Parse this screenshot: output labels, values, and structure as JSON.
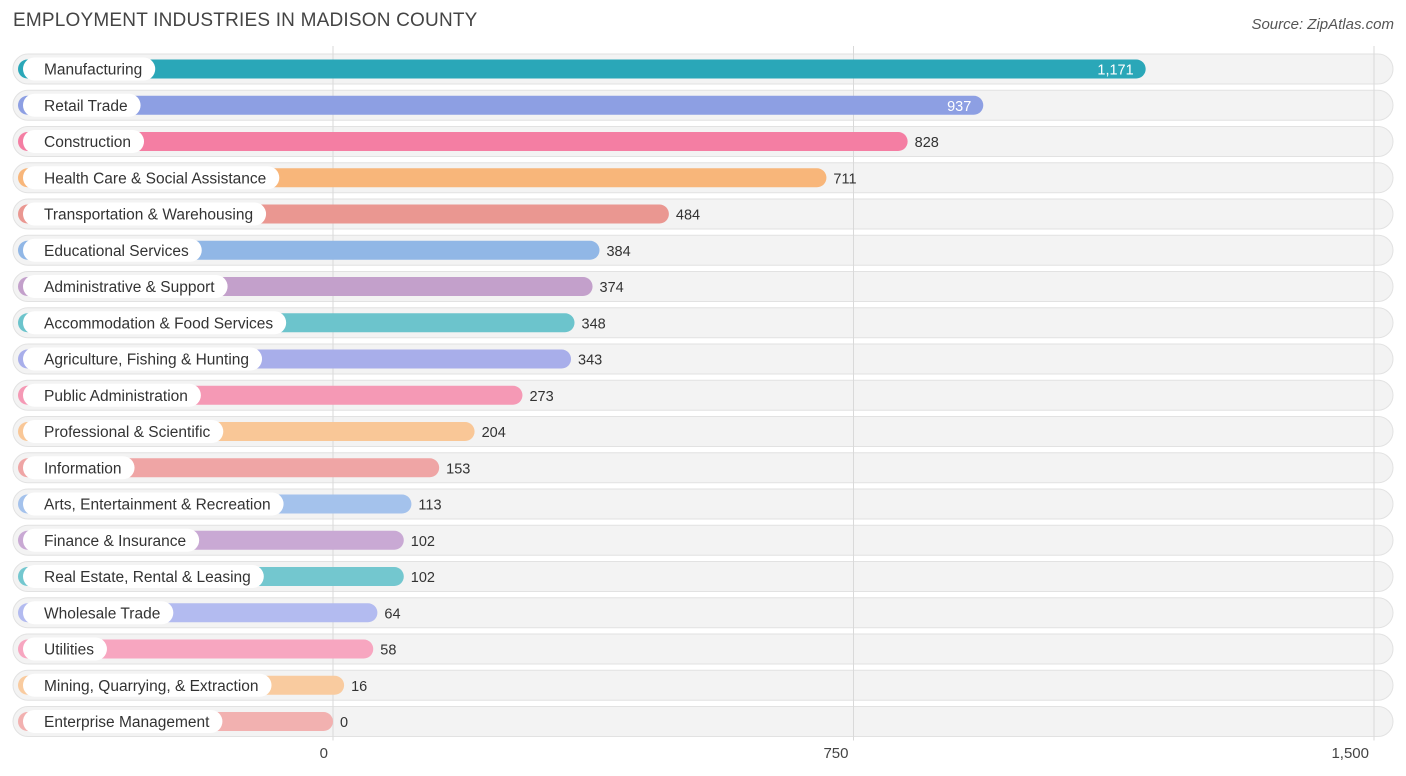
{
  "chart_data": {
    "type": "bar",
    "orientation": "horizontal",
    "title": "EMPLOYMENT INDUSTRIES IN MADISON COUNTY",
    "source": "Source: ZipAtlas.com",
    "xlabel": "",
    "ylabel": "",
    "xlim": [
      0,
      1500
    ],
    "x_ticks": [
      0,
      750,
      1500
    ],
    "x_tick_labels": [
      "0",
      "750",
      "1,500"
    ],
    "grid": true,
    "categories": [
      "Manufacturing",
      "Retail Trade",
      "Construction",
      "Health Care & Social Assistance",
      "Transportation & Warehousing",
      "Educational Services",
      "Administrative & Support",
      "Accommodation & Food Services",
      "Agriculture, Fishing & Hunting",
      "Public Administration",
      "Professional & Scientific",
      "Information",
      "Arts, Entertainment & Recreation",
      "Finance & Insurance",
      "Real Estate, Rental & Leasing",
      "Wholesale Trade",
      "Utilities",
      "Mining, Quarrying, & Extraction",
      "Enterprise Management"
    ],
    "values": [
      1171,
      937,
      828,
      711,
      484,
      384,
      374,
      348,
      343,
      273,
      204,
      153,
      113,
      102,
      102,
      64,
      58,
      16,
      0
    ],
    "value_labels": [
      "1,171",
      "937",
      "828",
      "711",
      "484",
      "384",
      "374",
      "348",
      "343",
      "273",
      "204",
      "153",
      "113",
      "102",
      "102",
      "64",
      "58",
      "16",
      "0"
    ],
    "colors": [
      "#2aa7b8",
      "#8d9fe3",
      "#f47ea3",
      "#f8b67a",
      "#ea9791",
      "#91b7e6",
      "#c3a0cb",
      "#6cc4cc",
      "#a8aeea",
      "#f599b5",
      "#f9c797",
      "#efa5a5",
      "#a4c2ec",
      "#c9a9d4",
      "#73c7cf",
      "#b3bbf0",
      "#f7a6c0",
      "#f9cb9f",
      "#f2b1b0"
    ]
  }
}
